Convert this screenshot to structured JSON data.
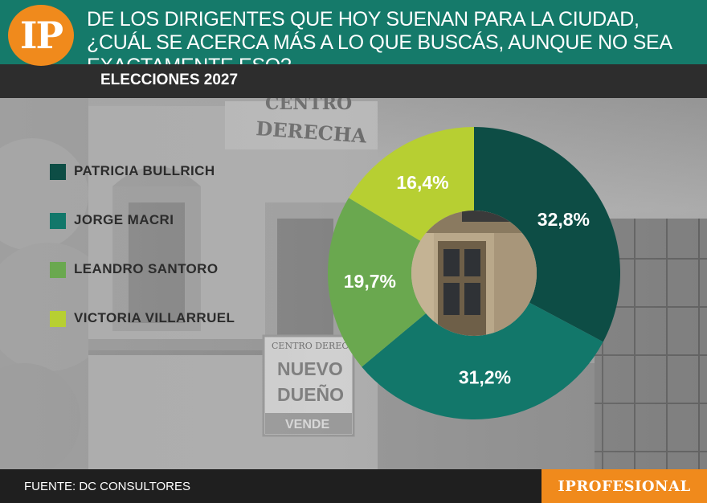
{
  "header": {
    "logo_text": "IP",
    "question": "DE LOS DIRIGENTES QUE HOY SUENAN PARA LA CIUDAD, ¿CUÁL SE ACERCA MÁS A LO QUE BUSCÁS, AUNQUE NO SEA EXACTAMENTE ESO?"
  },
  "subtitle": "ELECCIONES 2027",
  "background_sign": {
    "top": "CENTRO DERECHA",
    "box_top": "CENTRO DERECHA",
    "line1": "NUEVO",
    "line2": "DUEÑO",
    "line3": "VENDE"
  },
  "chart_data": {
    "type": "pie",
    "donut": true,
    "labels": [
      "PATRICIA BULLRICH",
      "JORGE MACRI",
      "LEANDRO SANTORO",
      "VICTORIA VILLARRUEL"
    ],
    "values": [
      32.8,
      31.2,
      19.7,
      16.4
    ],
    "value_labels": [
      "32,8%",
      "31,2%",
      "19,7%",
      "16,4%"
    ],
    "colors": [
      "#0d4d45",
      "#12776a",
      "#6aa84f",
      "#b7cf32"
    ],
    "legend_position": "left"
  },
  "footer": {
    "source": "FUENTE: DC CONSULTORES",
    "brand": "IPROFESIONAL"
  }
}
